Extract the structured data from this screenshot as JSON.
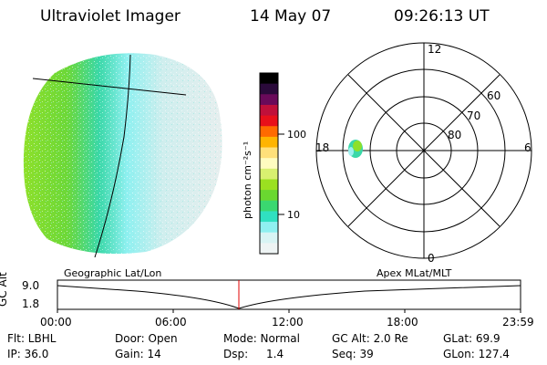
{
  "header": {
    "instrument": "Ultraviolet Imager",
    "date": "14 May 07",
    "time": "09:26:13 UT"
  },
  "colorbar": {
    "unit_label": "photon cm⁻²s⁻¹",
    "ticks": [
      "100",
      "10"
    ],
    "colors": [
      "#000000",
      "#2a0a3a",
      "#6a0a5a",
      "#c0103a",
      "#e8101a",
      "#ff6a00",
      "#ffb400",
      "#ffe07a",
      "#fffcc0",
      "#d8f070",
      "#9be020",
      "#6ad830",
      "#3ad870",
      "#30e0c0",
      "#8ff0f0",
      "#d8f4f4",
      "#eef4f4"
    ]
  },
  "polar_plot": {
    "mlt_labels": [
      "12",
      "18",
      "6",
      "0"
    ],
    "lat_labels": [
      "60",
      "70",
      "80"
    ]
  },
  "timeline": {
    "left_label": "Geographic Lat/Lon",
    "right_label": "Apex MLat/MLT",
    "axis_title": "GC Alt",
    "y_ticks": [
      "9.0",
      "1.8"
    ],
    "x_ticks": [
      "00:00",
      "06:00",
      "12:00",
      "18:00",
      "23:59"
    ],
    "marker_color": "#e00000"
  },
  "info": {
    "row1": {
      "flt": "Flt: LBHL",
      "door": "Door: Open",
      "mode": "Mode: Normal",
      "gcalt": "GC Alt: 2.0 Re",
      "glat": "GLat: 69.9"
    },
    "row2": {
      "ip": "IP: 36.0",
      "gain": "Gain: 14",
      "dsp_label": "Dsp:",
      "dsp_value": "1.4",
      "seq": "Seq: 39",
      "glon": "GLon: 127.4"
    }
  }
}
